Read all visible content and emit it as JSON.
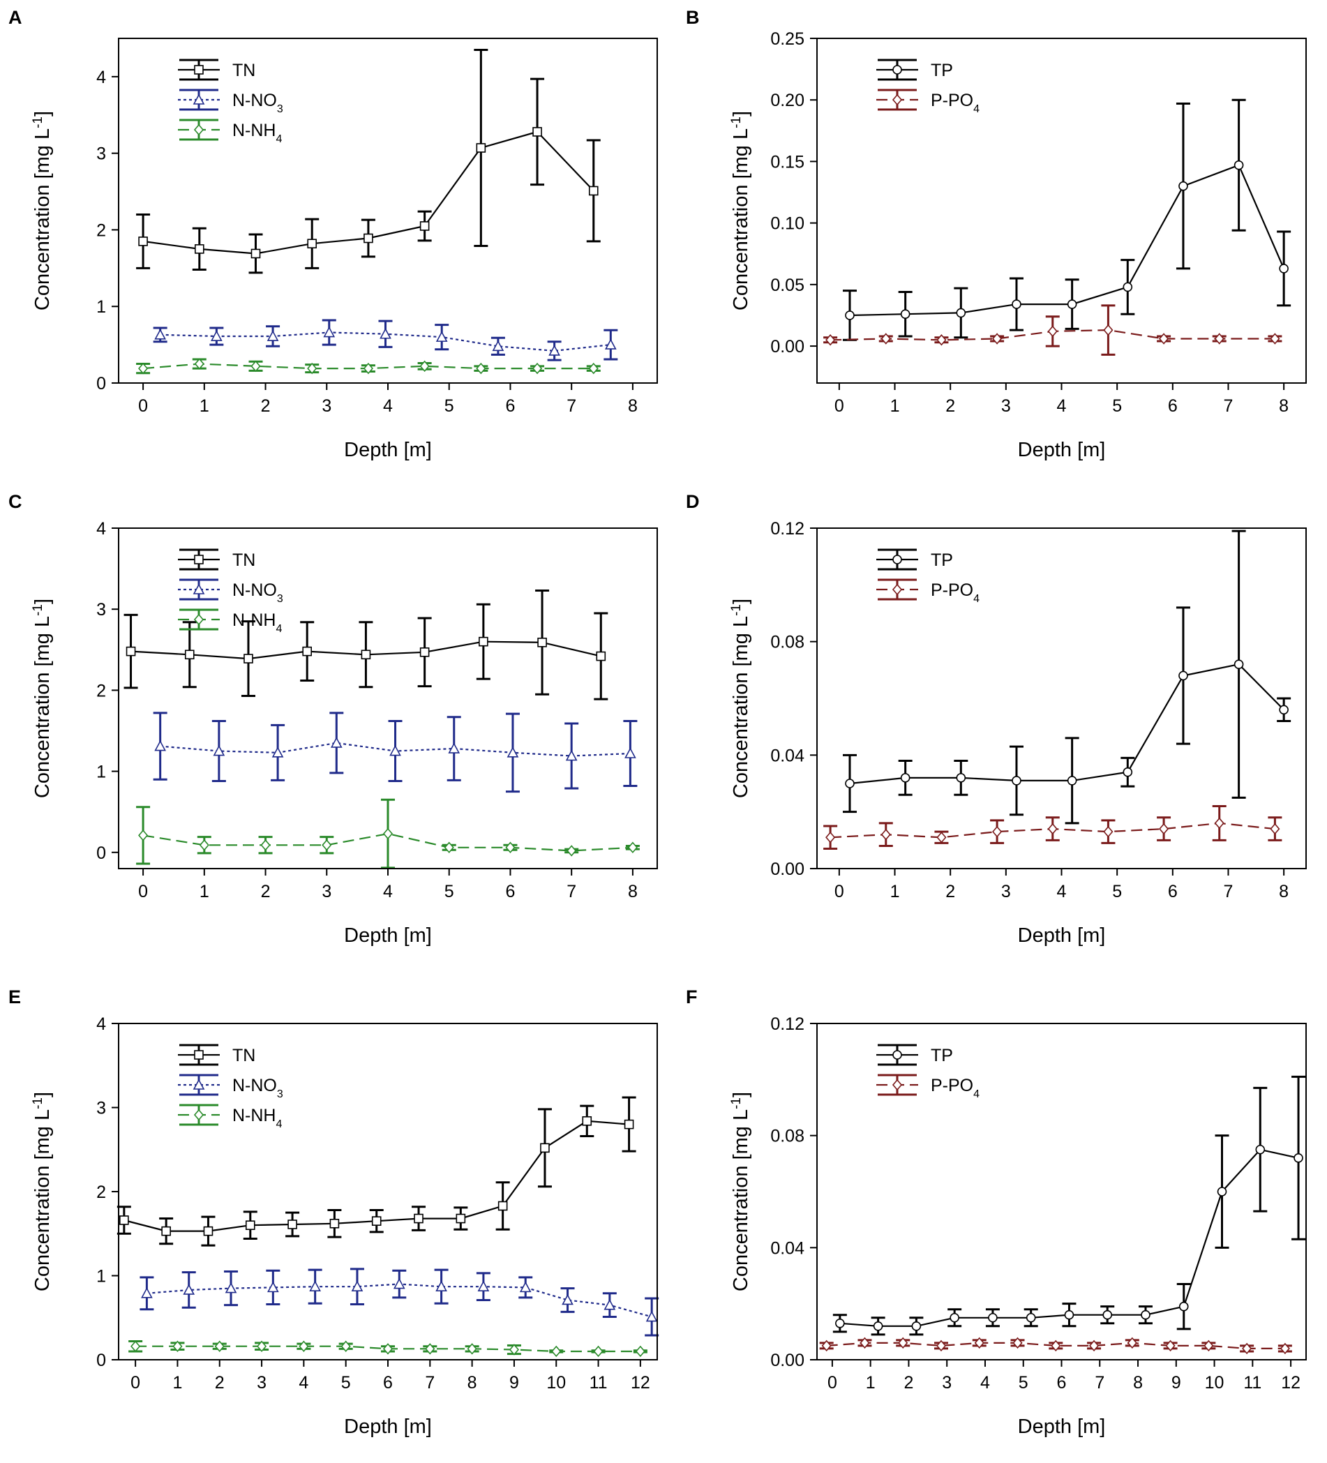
{
  "figure": {
    "background": "#ffffff"
  },
  "chart_data": [
    {
      "panel": "A",
      "type": "line",
      "xlabel": "Depth [m]",
      "ylabel": "Concentration [mg L-1]",
      "ylabel_parts": [
        "Concentration [mg L",
        "-1",
        "]"
      ],
      "xlim": [
        -0.4,
        8.4
      ],
      "ylim": [
        0,
        4.5
      ],
      "xticks": [
        0,
        1,
        2,
        3,
        4,
        5,
        6,
        7,
        8
      ],
      "yticks": [
        0,
        1,
        2,
        3,
        4
      ],
      "ytick_labels": [
        "0",
        "1",
        "2",
        "3",
        "4"
      ],
      "series": [
        {
          "name": "TN",
          "label_parts": [
            "TN"
          ],
          "color": "#000000",
          "dash": "solid",
          "marker": "square",
          "x": [
            0,
            0.92,
            1.84,
            2.76,
            3.68,
            4.6,
            5.52,
            6.44,
            7.36
          ],
          "y": [
            1.85,
            1.75,
            1.69,
            1.82,
            1.89,
            2.05,
            3.07,
            3.28,
            2.51
          ],
          "err": [
            0.35,
            0.27,
            0.25,
            0.32,
            0.24,
            0.19,
            1.28,
            0.69,
            0.66
          ]
        },
        {
          "name": "N-NO3",
          "label_parts": [
            "N-NO",
            "3"
          ],
          "color": "#1f2a8a",
          "dash": "dotted",
          "marker": "triangle",
          "x": [
            0.28,
            1.2,
            2.12,
            3.04,
            3.96,
            4.88,
            5.8,
            6.72,
            7.64
          ],
          "y": [
            0.63,
            0.61,
            0.61,
            0.66,
            0.64,
            0.6,
            0.48,
            0.42,
            0.5
          ],
          "err": [
            0.09,
            0.11,
            0.13,
            0.16,
            0.17,
            0.16,
            0.11,
            0.12,
            0.19
          ]
        },
        {
          "name": "N-NH4",
          "label_parts": [
            "N-NH",
            "4"
          ],
          "color": "#2a8a2a",
          "dash": "dashed",
          "marker": "diamond",
          "x": [
            0,
            0.92,
            1.84,
            2.76,
            3.68,
            4.6,
            5.52,
            6.44,
            7.36
          ],
          "y": [
            0.19,
            0.25,
            0.22,
            0.19,
            0.19,
            0.22,
            0.19,
            0.19,
            0.19
          ],
          "err": [
            0.06,
            0.06,
            0.06,
            0.05,
            0.04,
            0.04,
            0.03,
            0.03,
            0.03
          ]
        }
      ]
    },
    {
      "panel": "B",
      "type": "line",
      "xlabel": "Depth [m]",
      "ylabel": "Concentration [mg L-1]",
      "ylabel_parts": [
        "Concentration [mg L",
        "-1",
        "]"
      ],
      "xlim": [
        -0.4,
        8.4
      ],
      "ylim": [
        -0.03,
        0.25
      ],
      "xticks": [
        0,
        1,
        2,
        3,
        4,
        5,
        6,
        7,
        8
      ],
      "yticks": [
        0,
        0.05,
        0.1,
        0.15,
        0.2,
        0.25
      ],
      "ytick_labels": [
        "0.00",
        "0.05",
        "0.10",
        "0.15",
        "0.20",
        "0.25"
      ],
      "series": [
        {
          "name": "TP",
          "label_parts": [
            "TP"
          ],
          "color": "#000000",
          "dash": "solid",
          "marker": "circle",
          "x": [
            0.19,
            1.19,
            2.19,
            3.19,
            4.19,
            5.19,
            6.19,
            7.19,
            8.0
          ],
          "y": [
            0.025,
            0.026,
            0.027,
            0.034,
            0.034,
            0.048,
            0.13,
            0.147,
            0.063
          ],
          "err": [
            0.02,
            0.018,
            0.02,
            0.021,
            0.02,
            0.022,
            0.067,
            0.053,
            0.03
          ]
        },
        {
          "name": "P-PO4",
          "label_parts": [
            "P-PO",
            "4"
          ],
          "color": "#7a1a1a",
          "dash": "dashed",
          "marker": "diamond",
          "x": [
            -0.16,
            0.84,
            1.84,
            2.84,
            3.84,
            4.84,
            5.84,
            6.84,
            7.84
          ],
          "y": [
            0.005,
            0.006,
            0.005,
            0.006,
            0.012,
            0.013,
            0.006,
            0.006,
            0.006
          ],
          "err": [
            0.002,
            0.002,
            0.002,
            0.002,
            0.012,
            0.02,
            0.002,
            0.002,
            0.002
          ]
        }
      ]
    },
    {
      "panel": "C",
      "type": "line",
      "xlabel": "Depth [m]",
      "ylabel": "Concentration [mg L-1]",
      "ylabel_parts": [
        "Concentration [mg L",
        "-1",
        "]"
      ],
      "xlim": [
        -0.4,
        8.4
      ],
      "ylim": [
        -0.2,
        4
      ],
      "xticks": [
        0,
        1,
        2,
        3,
        4,
        5,
        6,
        7,
        8
      ],
      "yticks": [
        0,
        1,
        2,
        3,
        4
      ],
      "ytick_labels": [
        "0",
        "1",
        "2",
        "3",
        "4"
      ],
      "series": [
        {
          "name": "TN",
          "label_parts": [
            "TN"
          ],
          "color": "#000000",
          "dash": "solid",
          "marker": "square",
          "x": [
            -0.2,
            0.76,
            1.72,
            2.68,
            3.64,
            4.6,
            5.56,
            6.52,
            7.48
          ],
          "y": [
            2.48,
            2.44,
            2.39,
            2.48,
            2.44,
            2.47,
            2.6,
            2.59,
            2.42
          ],
          "err": [
            0.45,
            0.4,
            0.46,
            0.36,
            0.4,
            0.42,
            0.46,
            0.64,
            0.53
          ]
        },
        {
          "name": "N-NO3",
          "label_parts": [
            "N-NO",
            "3"
          ],
          "color": "#1f2a8a",
          "dash": "dotted",
          "marker": "triangle",
          "x": [
            0.28,
            1.24,
            2.2,
            3.16,
            4.12,
            5.08,
            6.04,
            7.0,
            7.96
          ],
          "y": [
            1.31,
            1.25,
            1.23,
            1.35,
            1.25,
            1.28,
            1.23,
            1.19,
            1.22
          ],
          "err": [
            0.41,
            0.37,
            0.34,
            0.37,
            0.37,
            0.39,
            0.48,
            0.4,
            0.4
          ]
        },
        {
          "name": "N-NH4",
          "label_parts": [
            "N-NH",
            "4"
          ],
          "color": "#2a8a2a",
          "dash": "dashed",
          "marker": "diamond",
          "x": [
            0,
            1,
            2,
            3,
            4,
            5,
            6,
            7,
            8
          ],
          "y": [
            0.21,
            0.09,
            0.09,
            0.09,
            0.23,
            0.06,
            0.06,
            0.02,
            0.06
          ],
          "err": [
            0.35,
            0.1,
            0.1,
            0.1,
            0.42,
            0.03,
            0.03,
            0.02,
            0.02
          ]
        }
      ]
    },
    {
      "panel": "D",
      "type": "line",
      "xlabel": "Depth [m]",
      "ylabel": "Concentration [mg L-1]",
      "ylabel_parts": [
        "Concentration [mg L",
        "-1",
        "]"
      ],
      "xlim": [
        -0.4,
        8.4
      ],
      "ylim": [
        0,
        0.12
      ],
      "xticks": [
        0,
        1,
        2,
        3,
        4,
        5,
        6,
        7,
        8
      ],
      "yticks": [
        0,
        0.04,
        0.08,
        0.12
      ],
      "ytick_labels": [
        "0.00",
        "0.04",
        "0.08",
        "0.12"
      ],
      "series": [
        {
          "name": "TP",
          "label_parts": [
            "TP"
          ],
          "color": "#000000",
          "dash": "solid",
          "marker": "circle",
          "x": [
            0.19,
            1.19,
            2.19,
            3.19,
            4.19,
            5.19,
            6.19,
            7.19,
            8.0
          ],
          "y": [
            0.03,
            0.032,
            0.032,
            0.031,
            0.031,
            0.034,
            0.068,
            0.072,
            0.056
          ],
          "err": [
            0.01,
            0.006,
            0.006,
            0.012,
            0.015,
            0.005,
            0.024,
            0.047,
            0.004
          ]
        },
        {
          "name": "P-PO4",
          "label_parts": [
            "P-PO",
            "4"
          ],
          "color": "#7a1a1a",
          "dash": "dashed",
          "marker": "diamond",
          "x": [
            -0.16,
            0.84,
            1.84,
            2.84,
            3.84,
            4.84,
            5.84,
            6.84,
            7.84
          ],
          "y": [
            0.011,
            0.012,
            0.011,
            0.013,
            0.014,
            0.013,
            0.014,
            0.016,
            0.014
          ],
          "err": [
            0.004,
            0.004,
            0.002,
            0.004,
            0.004,
            0.004,
            0.004,
            0.006,
            0.004
          ]
        }
      ]
    },
    {
      "panel": "E",
      "type": "line",
      "xlabel": "Depth [m]",
      "ylabel": "Concentration [mg L-1]",
      "ylabel_parts": [
        "Concentration [mg L",
        "-1",
        "]"
      ],
      "xlim": [
        -0.4,
        12.4
      ],
      "ylim": [
        0,
        4
      ],
      "xticks": [
        0,
        1,
        2,
        3,
        4,
        5,
        6,
        7,
        8,
        9,
        10,
        11,
        12
      ],
      "yticks": [
        0,
        1,
        2,
        3,
        4
      ],
      "ytick_labels": [
        "0",
        "1",
        "2",
        "3",
        "4"
      ],
      "series": [
        {
          "name": "TN",
          "label_parts": [
            "TN"
          ],
          "color": "#000000",
          "dash": "solid",
          "marker": "square",
          "x": [
            -0.27,
            0.73,
            1.73,
            2.73,
            3.73,
            4.73,
            5.73,
            6.73,
            7.73,
            8.73,
            9.73,
            10.73,
            11.73
          ],
          "y": [
            1.66,
            1.53,
            1.53,
            1.6,
            1.61,
            1.62,
            1.65,
            1.68,
            1.68,
            1.83,
            2.52,
            2.84,
            2.8
          ],
          "err": [
            0.16,
            0.15,
            0.17,
            0.16,
            0.14,
            0.16,
            0.13,
            0.14,
            0.13,
            0.28,
            0.46,
            0.18,
            0.32
          ]
        },
        {
          "name": "N-NO3",
          "label_parts": [
            "N-NO",
            "3"
          ],
          "color": "#1f2a8a",
          "dash": "dotted",
          "marker": "triangle",
          "x": [
            0.27,
            1.27,
            2.27,
            3.27,
            4.27,
            5.27,
            6.27,
            7.27,
            8.27,
            9.27,
            10.27,
            11.27,
            12.27
          ],
          "y": [
            0.79,
            0.83,
            0.85,
            0.86,
            0.87,
            0.87,
            0.9,
            0.87,
            0.87,
            0.86,
            0.71,
            0.65,
            0.51
          ],
          "err": [
            0.19,
            0.21,
            0.2,
            0.2,
            0.2,
            0.21,
            0.16,
            0.2,
            0.16,
            0.12,
            0.14,
            0.14,
            0.22
          ]
        },
        {
          "name": "N-NH4",
          "label_parts": [
            "N-NH",
            "4"
          ],
          "color": "#2a8a2a",
          "dash": "dashed",
          "marker": "diamond",
          "x": [
            0,
            1,
            2,
            3,
            4,
            5,
            6,
            7,
            8,
            9,
            10,
            11,
            12
          ],
          "y": [
            0.16,
            0.16,
            0.16,
            0.16,
            0.16,
            0.16,
            0.13,
            0.13,
            0.13,
            0.12,
            0.1,
            0.1,
            0.1
          ],
          "err": [
            0.06,
            0.04,
            0.03,
            0.04,
            0.03,
            0.03,
            0.03,
            0.03,
            0.03,
            0.05,
            0.01,
            0.01,
            0.01
          ]
        }
      ]
    },
    {
      "panel": "F",
      "type": "line",
      "xlabel": "Depth [m]",
      "ylabel": "Concentration [mg L-1]",
      "ylabel_parts": [
        "Concentration [mg L",
        "-1",
        "]"
      ],
      "xlim": [
        -0.4,
        12.4
      ],
      "ylim": [
        0,
        0.12
      ],
      "xticks": [
        0,
        1,
        2,
        3,
        4,
        5,
        6,
        7,
        8,
        9,
        10,
        11,
        12
      ],
      "yticks": [
        0,
        0.04,
        0.08,
        0.12
      ],
      "ytick_labels": [
        "0.00",
        "0.04",
        "0.08",
        "0.12"
      ],
      "series": [
        {
          "name": "TP",
          "label_parts": [
            "TP"
          ],
          "color": "#000000",
          "dash": "solid",
          "marker": "circle",
          "x": [
            0.2,
            1.2,
            2.2,
            3.2,
            4.2,
            5.2,
            6.2,
            7.2,
            8.2,
            9.2,
            10.2,
            11.2,
            12.2
          ],
          "y": [
            0.013,
            0.012,
            0.012,
            0.015,
            0.015,
            0.015,
            0.016,
            0.016,
            0.016,
            0.019,
            0.06,
            0.075,
            0.072
          ],
          "err": [
            0.003,
            0.003,
            0.003,
            0.003,
            0.003,
            0.003,
            0.004,
            0.003,
            0.003,
            0.008,
            0.02,
            0.022,
            0.029
          ]
        },
        {
          "name": "P-PO4",
          "label_parts": [
            "P-PO",
            "4"
          ],
          "color": "#7a1a1a",
          "dash": "dashed",
          "marker": "diamond",
          "x": [
            -0.15,
            0.85,
            1.85,
            2.85,
            3.85,
            4.85,
            5.85,
            6.85,
            7.85,
            8.85,
            9.85,
            10.85,
            11.85
          ],
          "y": [
            0.005,
            0.006,
            0.006,
            0.005,
            0.006,
            0.006,
            0.005,
            0.005,
            0.006,
            0.005,
            0.005,
            0.004,
            0.004
          ],
          "err": [
            0.001,
            0.001,
            0.001,
            0.001,
            0.001,
            0.001,
            0.001,
            0.001,
            0.001,
            0.001,
            0.001,
            0.001,
            0.001
          ]
        }
      ]
    }
  ]
}
